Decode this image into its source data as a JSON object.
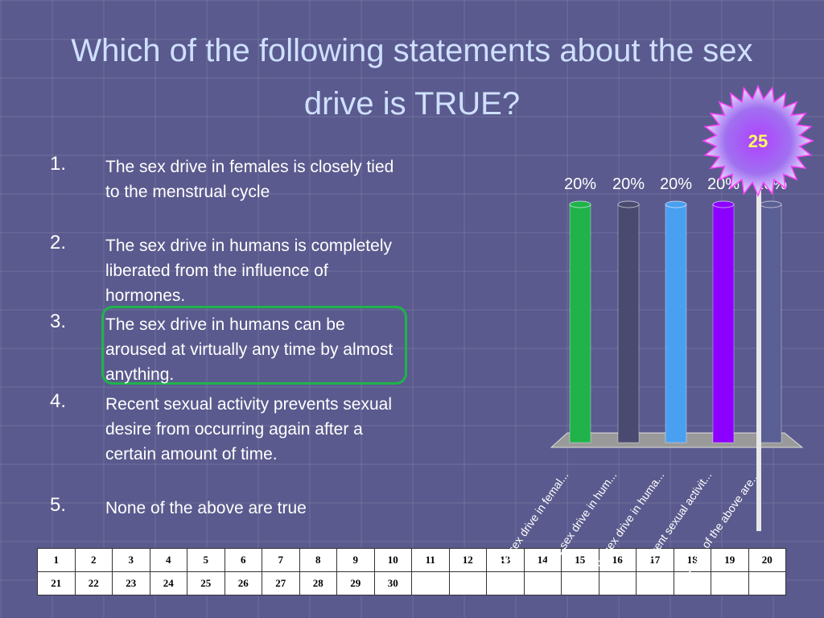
{
  "title": "Which of the following statements about the sex drive is TRUE?",
  "options": [
    {
      "number": "1.",
      "text": "The sex drive in females is closely tied to the menstrual cycle"
    },
    {
      "number": "2.",
      "text": "The sex drive in humans is completely liberated from the influence of hormones."
    },
    {
      "number": "3.",
      "text": "The sex drive in humans can be aroused at virtually any time by almost anything."
    },
    {
      "number": "4.",
      "text": "Recent sexual activity prevents sexual desire from occurring again after a certain amount of time."
    },
    {
      "number": "5.",
      "text": "None of the above are true"
    }
  ],
  "timer": 25,
  "chart_data": {
    "type": "bar",
    "categories": [
      "The sex drive in femal...",
      "The sex drive in hum...",
      "The sex drive in huma...",
      "Recent sexual activit...",
      "None of the above are..."
    ],
    "values": [
      20,
      20,
      20,
      20,
      20
    ],
    "value_labels": [
      "20%",
      "20%",
      "20%",
      "20%",
      "20%"
    ],
    "colors": [
      "#1fb34a",
      "#4a4a70",
      "#4aa0f0",
      "#8c00ff",
      "#5a5f95"
    ]
  },
  "table": {
    "rows": [
      [
        1,
        2,
        3,
        4,
        5,
        6,
        7,
        8,
        9,
        10,
        11,
        12,
        13,
        14,
        15,
        16,
        17,
        18,
        19,
        20
      ],
      [
        21,
        22,
        23,
        24,
        25,
        26,
        27,
        28,
        29,
        30
      ]
    ]
  }
}
